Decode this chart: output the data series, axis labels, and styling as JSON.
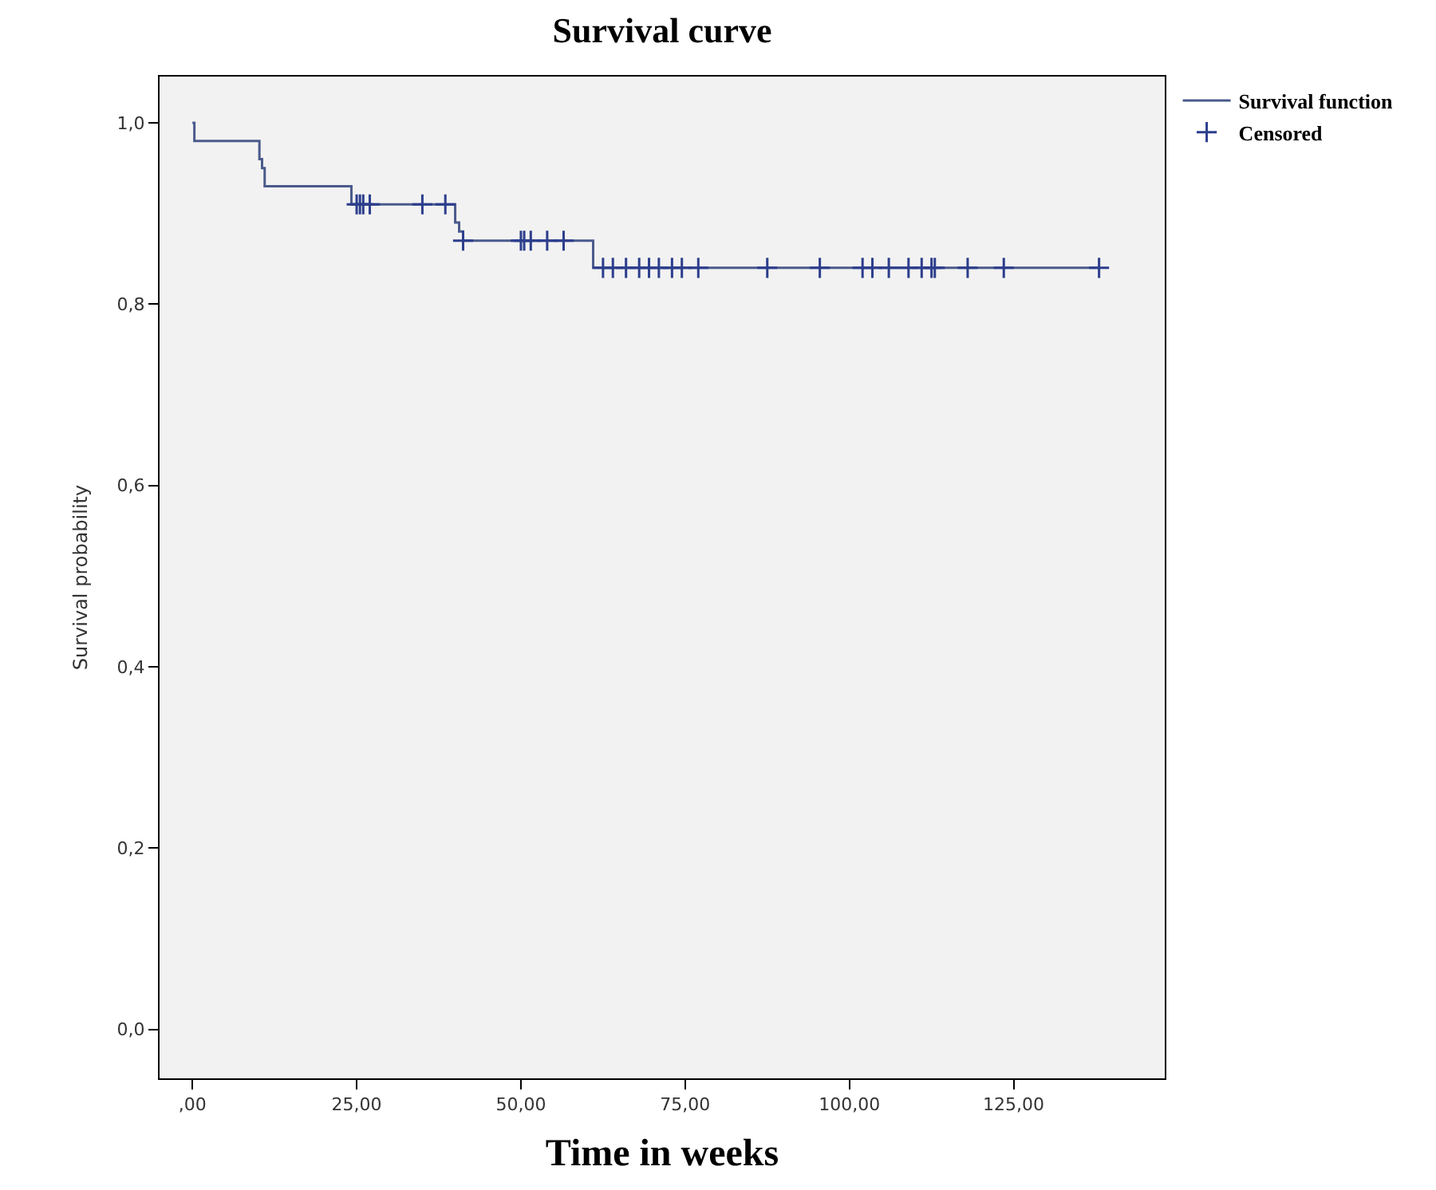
{
  "chart_data": {
    "type": "step",
    "title": "Survival curve",
    "xlabel": "Time in weeks",
    "ylabel": "Survival probability",
    "xlim": [
      -5,
      148
    ],
    "ylim": [
      -0.054,
      1.051
    ],
    "xticks": [
      {
        "value": 0,
        "label": ",00"
      },
      {
        "value": 25,
        "label": "25,00"
      },
      {
        "value": 50,
        "label": "50,00"
      },
      {
        "value": 75,
        "label": "75,00"
      },
      {
        "value": 100,
        "label": "100,00"
      },
      {
        "value": 125,
        "label": "125,00"
      }
    ],
    "yticks": [
      {
        "value": 0,
        "label": "0,0"
      },
      {
        "value": 0.2,
        "label": "0,2"
      },
      {
        "value": 0.4,
        "label": "0,4"
      },
      {
        "value": 0.6,
        "label": "0,6"
      },
      {
        "value": 0.8,
        "label": "0,8"
      },
      {
        "value": 1.0,
        "label": "1,0"
      }
    ],
    "grid": false,
    "legend": "top right",
    "series": [
      {
        "name": "Survival function",
        "color": "#4a5a8c",
        "line_style": "solid",
        "marker": "none",
        "x": [
          0,
          0.3,
          10.2,
          10.6,
          11,
          24.2,
          40,
          40.6,
          41.2,
          61,
          138
        ],
        "values": [
          1.0,
          0.98,
          0.96,
          0.95,
          0.93,
          0.91,
          0.89,
          0.88,
          0.87,
          0.84,
          0.84
        ]
      },
      {
        "name": "Censored",
        "type": "scatter",
        "color": "#2c3e8c",
        "marker": "cross",
        "x": [
          25,
          25.5,
          26,
          27,
          35,
          38.5,
          41.2,
          50,
          50.5,
          51.5,
          54,
          56.5,
          62.5,
          64,
          66,
          68,
          69.5,
          71,
          73,
          74.5,
          77,
          87.5,
          95.5,
          102,
          103.5,
          106,
          109,
          111,
          112.5,
          113,
          118,
          123.5,
          138
        ],
        "values": [
          0.91,
          0.91,
          0.91,
          0.91,
          0.91,
          0.91,
          0.87,
          0.87,
          0.87,
          0.87,
          0.87,
          0.87,
          0.84,
          0.84,
          0.84,
          0.84,
          0.84,
          0.84,
          0.84,
          0.84,
          0.84,
          0.84,
          0.84,
          0.84,
          0.84,
          0.84,
          0.84,
          0.84,
          0.84,
          0.84,
          0.84,
          0.84,
          0.84
        ]
      }
    ]
  }
}
